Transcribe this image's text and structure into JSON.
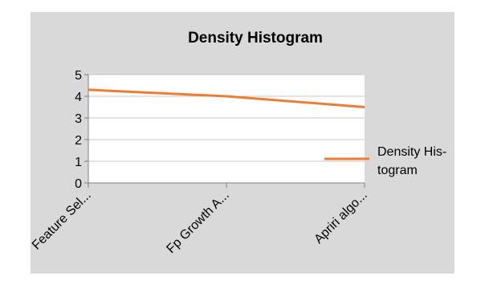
{
  "chart_data": {
    "type": "line",
    "title": "Density Histogram",
    "categories": [
      "Feature Sel...",
      "Fp Growth A...",
      "Apriri algo..."
    ],
    "series": [
      {
        "name": "Density Histogram",
        "values": [
          4.3,
          4.0,
          3.5
        ]
      }
    ],
    "legend": {
      "position": "right",
      "label_lines": [
        "Density His-",
        "togram"
      ]
    },
    "ylim": [
      0,
      5
    ],
    "yticks": [
      "0",
      "1",
      "2",
      "3",
      "4",
      "5"
    ],
    "grid": true,
    "colors": {
      "background": "#d9d9d9",
      "plot_area": "#ffffff",
      "line": "#ed7d31",
      "grid": "#c8c8c8"
    }
  }
}
